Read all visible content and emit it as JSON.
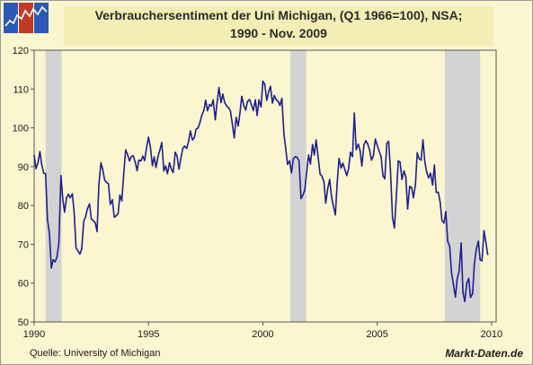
{
  "logo": {
    "icon": "market-chart-logo-icon",
    "colors": [
      "#2c59b8",
      "#c0392b",
      "#2c59b8"
    ]
  },
  "chart_data": {
    "type": "line",
    "title": "Verbrauchersentiment der Uni Michigan, (Q1 1966=100), NSA;",
    "subtitle": "1990 - Nov. 2009",
    "xlabel": "",
    "ylabel": "",
    "xlim": [
      1990.0,
      2010.2
    ],
    "ylim": [
      50,
      120
    ],
    "yticks": [
      50,
      60,
      70,
      80,
      90,
      100,
      110,
      120
    ],
    "xticks": [
      1990,
      1995,
      2000,
      2005,
      2010
    ],
    "grid": false,
    "legend": "none",
    "line_color": "#1f1f8f",
    "recession_color": "#d3d3d3",
    "recessions": [
      [
        1990.5,
        1991.2
      ],
      [
        2001.2,
        2001.9
      ],
      [
        2007.95,
        2009.5
      ]
    ],
    "series": [
      {
        "points": [
          [
            1990.0,
            93.0
          ],
          [
            1990.08,
            89.5
          ],
          [
            1990.17,
            91.0
          ],
          [
            1990.25,
            93.9
          ],
          [
            1990.33,
            90.6
          ],
          [
            1990.42,
            88.3
          ],
          [
            1990.5,
            88.2
          ],
          [
            1990.58,
            76.4
          ],
          [
            1990.67,
            72.8
          ],
          [
            1990.75,
            63.9
          ],
          [
            1990.83,
            66.0
          ],
          [
            1990.92,
            65.5
          ],
          [
            1991.0,
            66.8
          ],
          [
            1991.08,
            70.4
          ],
          [
            1991.17,
            87.7
          ],
          [
            1991.25,
            81.8
          ],
          [
            1991.33,
            78.3
          ],
          [
            1991.42,
            82.1
          ],
          [
            1991.5,
            82.9
          ],
          [
            1991.58,
            82.0
          ],
          [
            1991.67,
            83.0
          ],
          [
            1991.75,
            78.3
          ],
          [
            1991.83,
            69.1
          ],
          [
            1991.92,
            68.2
          ],
          [
            1992.0,
            67.5
          ],
          [
            1992.08,
            68.8
          ],
          [
            1992.17,
            76.0
          ],
          [
            1992.25,
            77.2
          ],
          [
            1992.33,
            79.2
          ],
          [
            1992.42,
            80.4
          ],
          [
            1992.5,
            76.6
          ],
          [
            1992.58,
            76.1
          ],
          [
            1992.67,
            75.6
          ],
          [
            1992.75,
            73.3
          ],
          [
            1992.83,
            85.3
          ],
          [
            1992.92,
            91.0
          ],
          [
            1993.0,
            89.3
          ],
          [
            1993.08,
            86.6
          ],
          [
            1993.17,
            85.9
          ],
          [
            1993.25,
            85.6
          ],
          [
            1993.33,
            80.3
          ],
          [
            1993.42,
            81.5
          ],
          [
            1993.5,
            77.0
          ],
          [
            1993.58,
            77.3
          ],
          [
            1993.67,
            77.9
          ],
          [
            1993.75,
            82.7
          ],
          [
            1993.83,
            81.2
          ],
          [
            1993.92,
            88.2
          ],
          [
            1994.0,
            94.3
          ],
          [
            1994.08,
            93.2
          ],
          [
            1994.17,
            91.5
          ],
          [
            1994.25,
            92.6
          ],
          [
            1994.33,
            92.8
          ],
          [
            1994.42,
            91.2
          ],
          [
            1994.5,
            89.0
          ],
          [
            1994.58,
            91.7
          ],
          [
            1994.67,
            91.5
          ],
          [
            1994.75,
            92.7
          ],
          [
            1994.83,
            91.6
          ],
          [
            1994.92,
            95.1
          ],
          [
            1995.0,
            97.6
          ],
          [
            1995.08,
            95.1
          ],
          [
            1995.17,
            90.3
          ],
          [
            1995.25,
            92.5
          ],
          [
            1995.33,
            89.8
          ],
          [
            1995.42,
            92.7
          ],
          [
            1995.5,
            94.4
          ],
          [
            1995.58,
            96.2
          ],
          [
            1995.67,
            88.9
          ],
          [
            1995.75,
            90.2
          ],
          [
            1995.83,
            88.2
          ],
          [
            1995.92,
            91.0
          ],
          [
            1996.0,
            89.3
          ],
          [
            1996.08,
            88.5
          ],
          [
            1996.17,
            93.7
          ],
          [
            1996.25,
            92.7
          ],
          [
            1996.33,
            89.4
          ],
          [
            1996.42,
            92.4
          ],
          [
            1996.5,
            94.7
          ],
          [
            1996.58,
            95.3
          ],
          [
            1996.67,
            94.7
          ],
          [
            1996.75,
            96.5
          ],
          [
            1996.83,
            99.2
          ],
          [
            1996.92,
            96.9
          ],
          [
            1997.0,
            97.4
          ],
          [
            1997.08,
            99.7
          ],
          [
            1997.17,
            100.0
          ],
          [
            1997.25,
            101.4
          ],
          [
            1997.33,
            103.2
          ],
          [
            1997.42,
            104.5
          ],
          [
            1997.5,
            107.1
          ],
          [
            1997.58,
            104.4
          ],
          [
            1997.67,
            106.0
          ],
          [
            1997.75,
            105.6
          ],
          [
            1997.83,
            107.2
          ],
          [
            1997.92,
            102.1
          ],
          [
            1998.0,
            106.6
          ],
          [
            1998.08,
            110.4
          ],
          [
            1998.17,
            106.5
          ],
          [
            1998.25,
            108.7
          ],
          [
            1998.33,
            106.5
          ],
          [
            1998.42,
            105.6
          ],
          [
            1998.5,
            105.2
          ],
          [
            1998.58,
            104.4
          ],
          [
            1998.67,
            100.9
          ],
          [
            1998.75,
            97.4
          ],
          [
            1998.83,
            102.7
          ],
          [
            1998.92,
            100.5
          ],
          [
            1999.0,
            103.9
          ],
          [
            1999.08,
            108.1
          ],
          [
            1999.17,
            105.7
          ],
          [
            1999.25,
            104.6
          ],
          [
            1999.33,
            106.8
          ],
          [
            1999.42,
            107.3
          ],
          [
            1999.5,
            106.0
          ],
          [
            1999.58,
            104.5
          ],
          [
            1999.67,
            107.2
          ],
          [
            1999.75,
            103.2
          ],
          [
            1999.83,
            107.2
          ],
          [
            1999.92,
            105.4
          ],
          [
            2000.0,
            112.0
          ],
          [
            2000.08,
            111.3
          ],
          [
            2000.17,
            107.1
          ],
          [
            2000.25,
            109.2
          ],
          [
            2000.33,
            110.7
          ],
          [
            2000.42,
            106.4
          ],
          [
            2000.5,
            108.3
          ],
          [
            2000.58,
            107.3
          ],
          [
            2000.67,
            106.8
          ],
          [
            2000.75,
            105.8
          ],
          [
            2000.83,
            107.6
          ],
          [
            2000.92,
            98.4
          ],
          [
            2001.0,
            94.7
          ],
          [
            2001.08,
            90.6
          ],
          [
            2001.17,
            91.5
          ],
          [
            2001.25,
            88.4
          ],
          [
            2001.33,
            92.0
          ],
          [
            2001.42,
            92.6
          ],
          [
            2001.5,
            92.4
          ],
          [
            2001.58,
            91.5
          ],
          [
            2001.67,
            81.8
          ],
          [
            2001.75,
            82.7
          ],
          [
            2001.83,
            83.9
          ],
          [
            2001.92,
            88.8
          ],
          [
            2002.0,
            93.0
          ],
          [
            2002.08,
            90.7
          ],
          [
            2002.17,
            95.7
          ],
          [
            2002.25,
            93.0
          ],
          [
            2002.33,
            96.9
          ],
          [
            2002.42,
            92.4
          ],
          [
            2002.5,
            88.1
          ],
          [
            2002.58,
            87.6
          ],
          [
            2002.67,
            86.1
          ],
          [
            2002.75,
            80.6
          ],
          [
            2002.83,
            84.2
          ],
          [
            2002.92,
            86.7
          ],
          [
            2003.0,
            82.4
          ],
          [
            2003.08,
            79.9
          ],
          [
            2003.17,
            77.6
          ],
          [
            2003.25,
            86.0
          ],
          [
            2003.33,
            92.1
          ],
          [
            2003.42,
            89.7
          ],
          [
            2003.5,
            90.9
          ],
          [
            2003.58,
            89.3
          ],
          [
            2003.67,
            87.7
          ],
          [
            2003.75,
            89.6
          ],
          [
            2003.83,
            93.7
          ],
          [
            2003.92,
            92.6
          ],
          [
            2004.0,
            103.8
          ],
          [
            2004.08,
            94.4
          ],
          [
            2004.17,
            95.8
          ],
          [
            2004.25,
            94.2
          ],
          [
            2004.33,
            90.2
          ],
          [
            2004.42,
            95.6
          ],
          [
            2004.5,
            96.7
          ],
          [
            2004.58,
            95.9
          ],
          [
            2004.67,
            94.2
          ],
          [
            2004.75,
            91.7
          ],
          [
            2004.83,
            92.8
          ],
          [
            2004.92,
            97.1
          ],
          [
            2005.0,
            95.5
          ],
          [
            2005.08,
            94.1
          ],
          [
            2005.17,
            92.6
          ],
          [
            2005.25,
            87.7
          ],
          [
            2005.33,
            86.9
          ],
          [
            2005.42,
            96.0
          ],
          [
            2005.5,
            96.5
          ],
          [
            2005.58,
            89.1
          ],
          [
            2005.67,
            76.9
          ],
          [
            2005.75,
            74.2
          ],
          [
            2005.83,
            81.6
          ],
          [
            2005.92,
            91.5
          ],
          [
            2006.0,
            91.2
          ],
          [
            2006.08,
            86.7
          ],
          [
            2006.17,
            88.9
          ],
          [
            2006.25,
            87.4
          ],
          [
            2006.33,
            79.1
          ],
          [
            2006.42,
            84.9
          ],
          [
            2006.5,
            84.7
          ],
          [
            2006.58,
            82.0
          ],
          [
            2006.67,
            85.4
          ],
          [
            2006.75,
            93.6
          ],
          [
            2006.83,
            92.1
          ],
          [
            2006.92,
            91.7
          ],
          [
            2007.0,
            96.9
          ],
          [
            2007.08,
            91.3
          ],
          [
            2007.17,
            88.4
          ],
          [
            2007.25,
            87.1
          ],
          [
            2007.33,
            88.3
          ],
          [
            2007.42,
            85.3
          ],
          [
            2007.5,
            90.4
          ],
          [
            2007.58,
            83.4
          ],
          [
            2007.67,
            83.4
          ],
          [
            2007.75,
            80.9
          ],
          [
            2007.83,
            76.1
          ],
          [
            2007.92,
            75.5
          ],
          [
            2008.0,
            78.4
          ],
          [
            2008.08,
            70.8
          ],
          [
            2008.17,
            69.5
          ],
          [
            2008.25,
            62.6
          ],
          [
            2008.33,
            59.8
          ],
          [
            2008.42,
            56.4
          ],
          [
            2008.5,
            61.2
          ],
          [
            2008.58,
            63.0
          ],
          [
            2008.67,
            70.3
          ],
          [
            2008.75,
            57.6
          ],
          [
            2008.83,
            55.3
          ],
          [
            2008.92,
            60.1
          ],
          [
            2009.0,
            61.2
          ],
          [
            2009.08,
            56.3
          ],
          [
            2009.17,
            57.3
          ],
          [
            2009.25,
            65.1
          ],
          [
            2009.33,
            68.7
          ],
          [
            2009.42,
            70.8
          ],
          [
            2009.5,
            66.0
          ],
          [
            2009.58,
            65.7
          ],
          [
            2009.67,
            73.5
          ],
          [
            2009.75,
            70.6
          ],
          [
            2009.83,
            67.4
          ]
        ]
      }
    ]
  },
  "footer": {
    "source": "Quelle: University of Michigan",
    "brand": "Markt-Daten.de"
  }
}
